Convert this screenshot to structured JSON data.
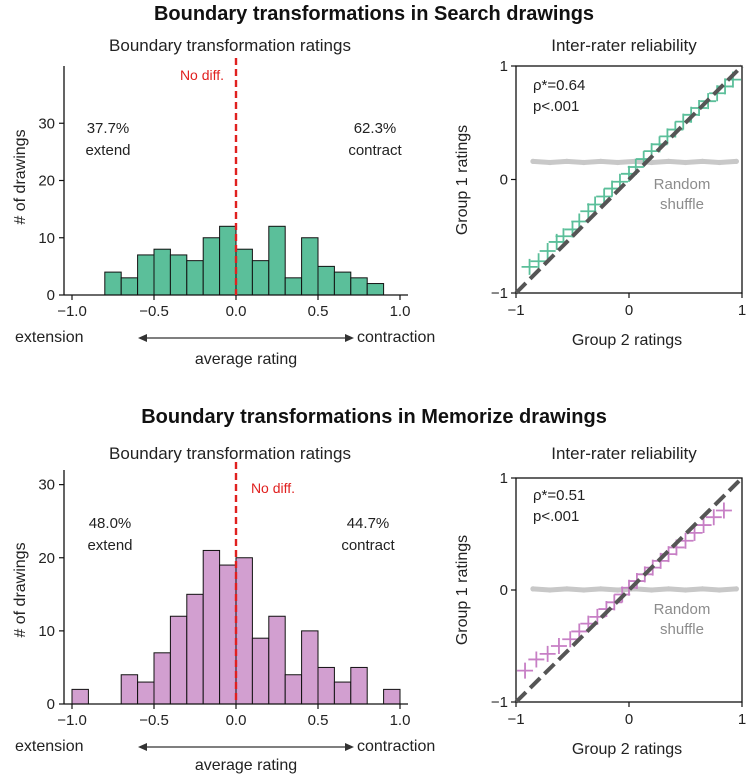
{
  "panels": [
    {
      "title": "Boundary transformations in Search drawings",
      "histogram": {
        "subtitle": "Boundary transformation ratings",
        "ylabel": "# of drawings",
        "xlabel": "average rating",
        "left_label": "extension",
        "right_label": "contraction",
        "no_diff_label": "No diff.",
        "extend_pct": "37.7%",
        "extend_label": "extend",
        "contract_pct": "62.3%",
        "contract_label": "contract"
      },
      "reliability": {
        "subtitle": "Inter-rater reliability",
        "xlabel": "Group 2 ratings",
        "ylabel": "Group 1 ratings",
        "rho_label": "ρ*=0.64",
        "p_label": "p<.001",
        "shuffle_line1": "Random",
        "shuffle_line2": "shuffle"
      }
    },
    {
      "title": "Boundary transformations in Memorize drawings",
      "histogram": {
        "subtitle": "Boundary transformation ratings",
        "ylabel": "# of drawings",
        "xlabel": "average rating",
        "left_label": "extension",
        "right_label": "contraction",
        "no_diff_label": "No diff.",
        "extend_pct": "48.0%",
        "extend_label": "extend",
        "contract_pct": "44.7%",
        "contract_label": "contract"
      },
      "reliability": {
        "subtitle": "Inter-rater reliability",
        "xlabel": "Group 2 ratings",
        "ylabel": "Group 1 ratings",
        "rho_label": "ρ*=0.51",
        "p_label": "p<.001",
        "shuffle_line1": "Random",
        "shuffle_line2": "shuffle"
      }
    }
  ],
  "chart_data": [
    {
      "type": "bar",
      "title": "Boundary transformation ratings",
      "xlabel": "average rating",
      "ylabel": "# of drawings",
      "xlim": [
        -1.0,
        1.0
      ],
      "ylim": [
        0,
        40
      ],
      "xticks": [
        -1.0,
        -0.5,
        0.0,
        0.5,
        1.0
      ],
      "yticks": [
        0,
        10,
        20,
        30
      ],
      "bin_width": 0.1,
      "bin_starts": [
        -0.8,
        -0.7,
        -0.6,
        -0.5,
        -0.4,
        -0.3,
        -0.2,
        -0.1,
        0.0,
        0.1,
        0.2,
        0.3,
        0.4,
        0.5,
        0.6,
        0.7,
        0.8
      ],
      "values": [
        4,
        3,
        7,
        8,
        7,
        6,
        10,
        12,
        8,
        6,
        12,
        3,
        10,
        5,
        4,
        3,
        2
      ],
      "color": "#5bbf9a",
      "reference_line": {
        "x": 0.0,
        "label": "No diff.",
        "color": "#e0201f"
      }
    },
    {
      "type": "scatter",
      "title": "Inter-rater reliability",
      "xlabel": "Group 2 ratings",
      "ylabel": "Group 1 ratings",
      "xlim": [
        -1,
        1
      ],
      "ylim": [
        -1,
        1
      ],
      "xticks": [
        -1,
        0,
        1
      ],
      "yticks": [
        -1,
        0,
        1
      ],
      "series": [
        {
          "name": "",
          "marker": "plus",
          "color": "#5bbf9a",
          "x": [
            -0.88,
            -0.8,
            -0.72,
            -0.64,
            -0.58,
            -0.5,
            -0.44,
            -0.36,
            -0.3,
            -0.22,
            -0.15,
            -0.08,
            0.0,
            0.06,
            0.13,
            0.2,
            0.27,
            0.34,
            0.41,
            0.48,
            0.55,
            0.62,
            0.7,
            0.78,
            0.85,
            0.92
          ],
          "y": [
            -0.77,
            -0.72,
            -0.63,
            -0.55,
            -0.5,
            -0.44,
            -0.37,
            -0.28,
            -0.22,
            -0.15,
            -0.08,
            -0.02,
            0.05,
            0.11,
            0.18,
            0.25,
            0.31,
            0.38,
            0.44,
            0.51,
            0.57,
            0.63,
            0.69,
            0.76,
            0.82,
            0.88
          ]
        },
        {
          "name": "Random shuffle",
          "marker": "dot",
          "color": "#c8c8c8",
          "x": [
            -0.85,
            -0.7,
            -0.55,
            -0.4,
            -0.25,
            -0.1,
            0.05,
            0.2,
            0.35,
            0.5,
            0.65,
            0.8,
            0.95
          ],
          "y": [
            0.16,
            0.15,
            0.16,
            0.15,
            0.16,
            0.15,
            0.16,
            0.15,
            0.16,
            0.15,
            0.16,
            0.15,
            0.16
          ]
        }
      ],
      "reference_line": {
        "type": "identity",
        "color": "#555555",
        "dashed": true
      }
    },
    {
      "type": "bar",
      "title": "Boundary transformation ratings",
      "xlabel": "average rating",
      "ylabel": "# of drawings",
      "xlim": [
        -1.0,
        1.0
      ],
      "ylim": [
        0,
        32
      ],
      "xticks": [
        -1.0,
        -0.5,
        0.0,
        0.5,
        1.0
      ],
      "yticks": [
        0,
        10,
        20,
        30
      ],
      "bin_width": 0.1,
      "bin_starts": [
        -1.0,
        -0.7,
        -0.6,
        -0.5,
        -0.4,
        -0.3,
        -0.2,
        -0.1,
        0.0,
        0.1,
        0.2,
        0.3,
        0.4,
        0.5,
        0.6,
        0.7,
        0.9
      ],
      "values": [
        2,
        4,
        3,
        7,
        12,
        15,
        21,
        19,
        20,
        9,
        12,
        4,
        10,
        5,
        3,
        5,
        2
      ],
      "color": "#d29fd0",
      "reference_line": {
        "x": 0.0,
        "label": "No diff.",
        "color": "#e0201f"
      }
    },
    {
      "type": "scatter",
      "title": "Inter-rater reliability",
      "xlabel": "Group 2 ratings",
      "ylabel": "Group 1 ratings",
      "xlim": [
        -1,
        1
      ],
      "ylim": [
        -1,
        1
      ],
      "xticks": [
        -1,
        0,
        1
      ],
      "yticks": [
        -1,
        0,
        1
      ],
      "series": [
        {
          "name": "",
          "marker": "plus",
          "color": "#c77fc5",
          "x": [
            -0.92,
            -0.82,
            -0.72,
            -0.62,
            -0.52,
            -0.44,
            -0.36,
            -0.28,
            -0.2,
            -0.13,
            -0.06,
            0.0,
            0.07,
            0.14,
            0.21,
            0.28,
            0.35,
            0.42,
            0.5,
            0.58,
            0.66,
            0.75,
            0.84
          ],
          "y": [
            -0.72,
            -0.62,
            -0.57,
            -0.5,
            -0.44,
            -0.37,
            -0.3,
            -0.24,
            -0.17,
            -0.11,
            -0.04,
            0.02,
            0.08,
            0.14,
            0.2,
            0.26,
            0.32,
            0.38,
            0.44,
            0.51,
            0.58,
            0.65,
            0.71
          ]
        },
        {
          "name": "Random shuffle",
          "marker": "dot",
          "color": "#c8c8c8",
          "x": [
            -0.85,
            -0.7,
            -0.55,
            -0.4,
            -0.25,
            -0.1,
            0.05,
            0.2,
            0.35,
            0.5,
            0.65,
            0.8,
            0.95
          ],
          "y": [
            0.01,
            0.0,
            0.01,
            0.0,
            0.01,
            0.0,
            0.01,
            0.0,
            0.01,
            0.0,
            0.01,
            0.0,
            0.01
          ]
        }
      ],
      "reference_line": {
        "type": "identity",
        "color": "#555555",
        "dashed": true
      }
    }
  ]
}
